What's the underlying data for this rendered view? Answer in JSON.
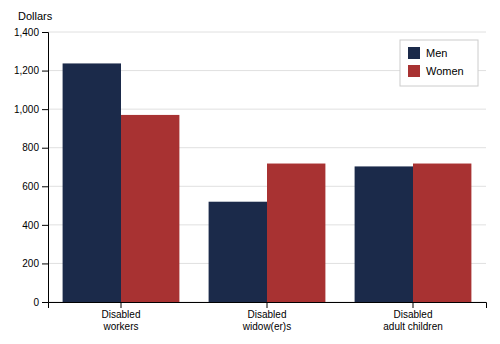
{
  "chart_data": {
    "type": "bar",
    "categories": [
      "Disabled\nworkers",
      "Disabled\nwidow(er)s",
      "Disabled\nadult children"
    ],
    "series": [
      {
        "name": "Men",
        "color": "#1b2a4a",
        "values": [
          1237,
          520,
          703
        ]
      },
      {
        "name": "Women",
        "color": "#a83232",
        "values": [
          970,
          718,
          718
        ]
      }
    ],
    "ylabel": "Dollars",
    "ylim": [
      0,
      1400
    ],
    "yticks": [
      0,
      200,
      400,
      600,
      800,
      {
        "value": 1000,
        "label": "1,000"
      },
      {
        "value": 1200,
        "label": "1,200"
      },
      {
        "value": 1400,
        "label": "1,400"
      }
    ],
    "grid": true,
    "legend": "upper right"
  }
}
